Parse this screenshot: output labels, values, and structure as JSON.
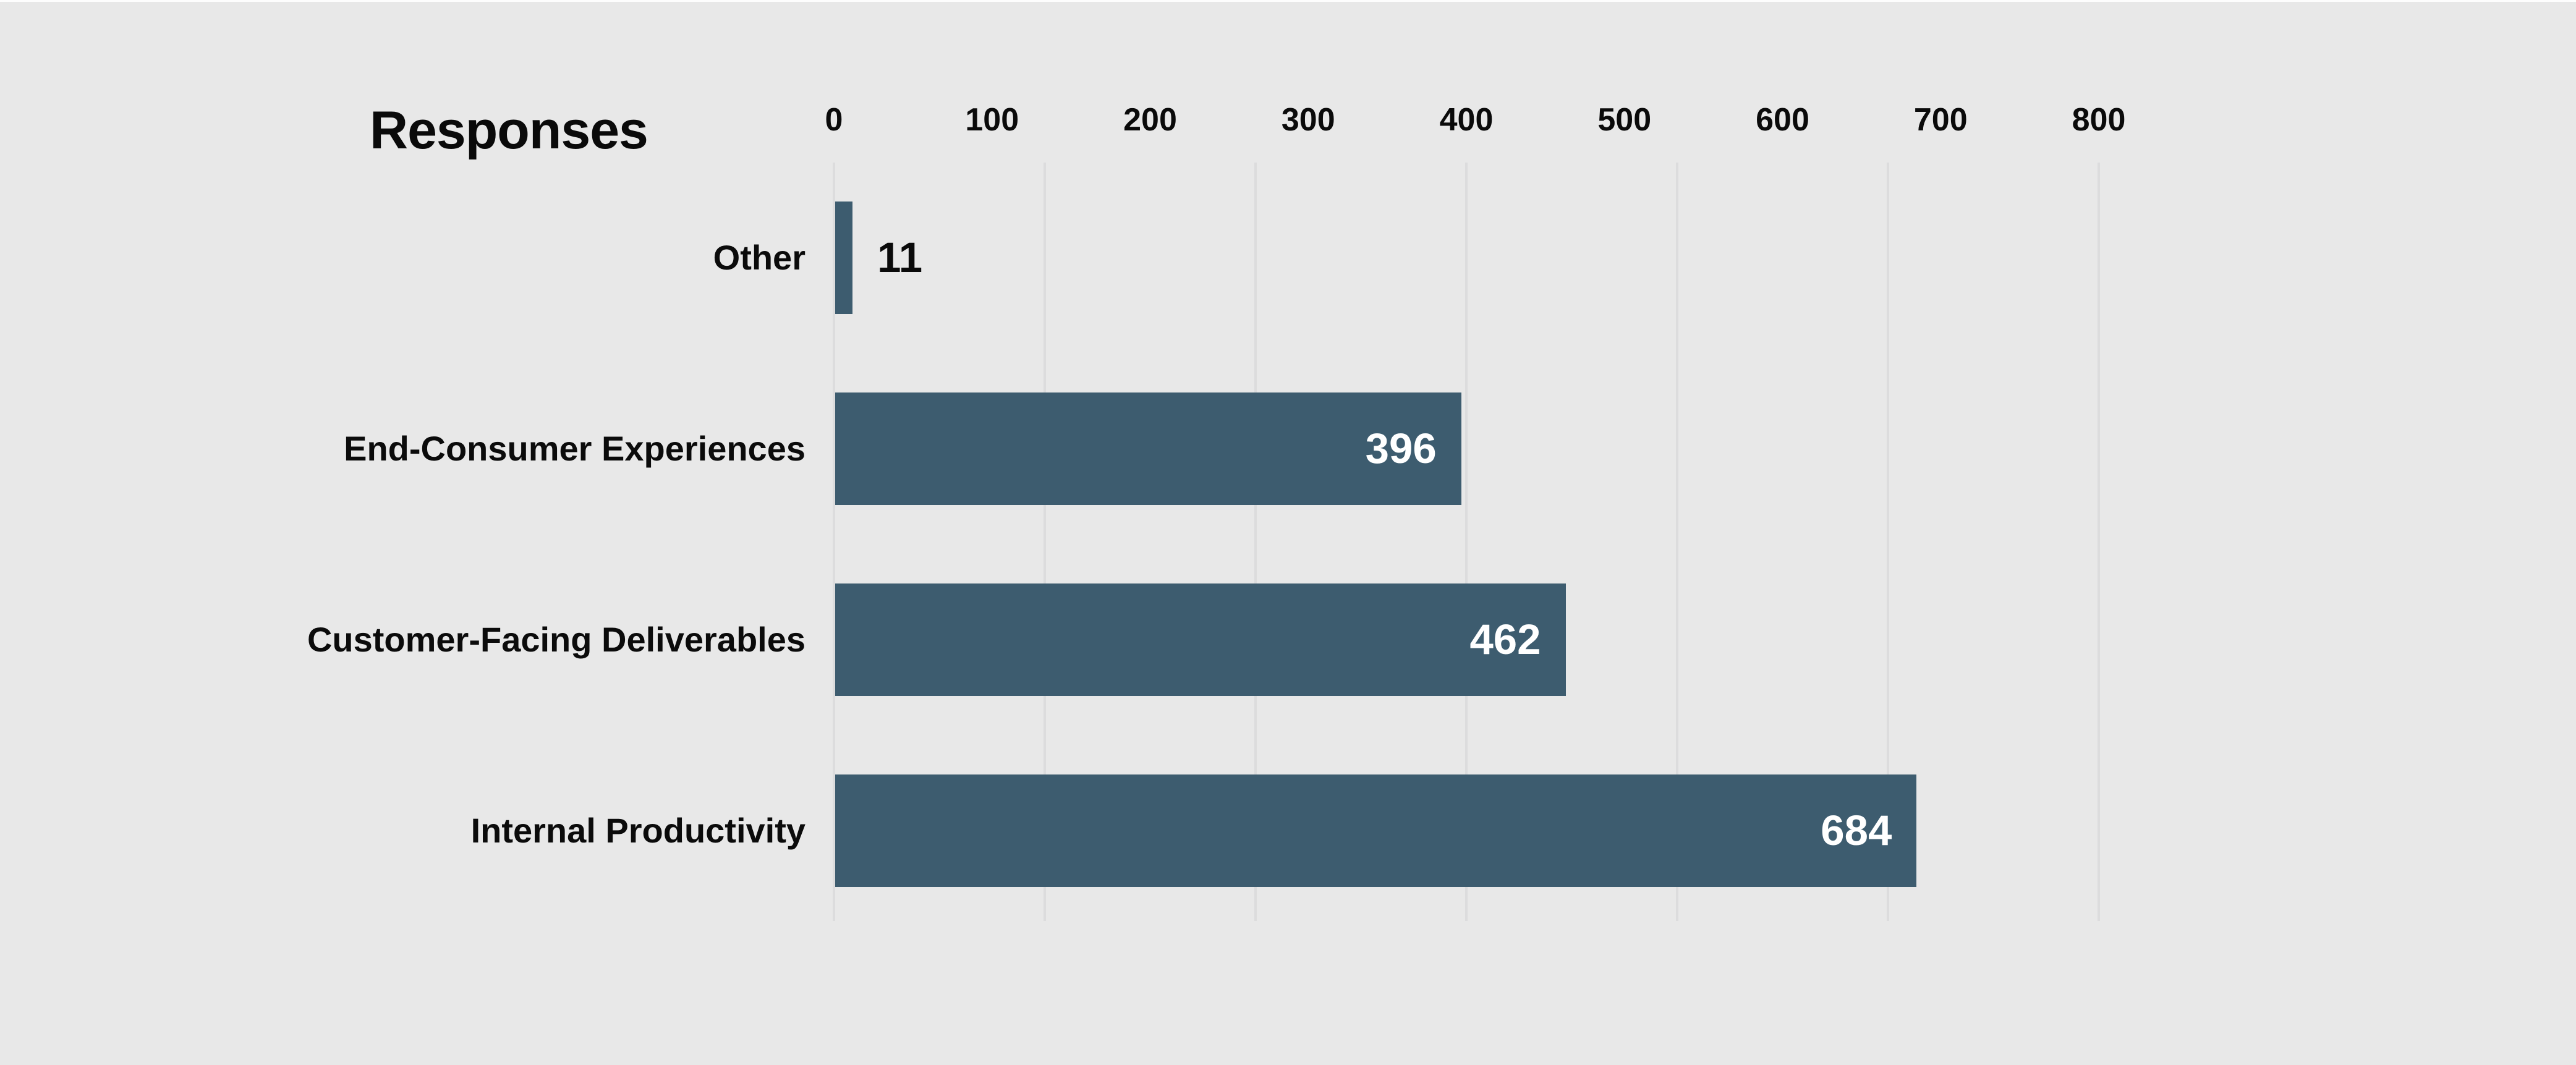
{
  "chart_data": {
    "type": "bar",
    "orientation": "horizontal",
    "title": "Responses",
    "categories": [
      "Other",
      "End-Consumer Experiences",
      "Customer-Facing Deliverables",
      "Internal Productivity"
    ],
    "values": [
      11,
      396,
      462,
      684
    ],
    "value_labels": [
      "11",
      "396",
      "462",
      "684"
    ],
    "xlim": [
      0,
      800
    ],
    "x_ticks": [
      0,
      100,
      200,
      300,
      400,
      500,
      600,
      700,
      800
    ],
    "x_tick_labels": [
      "0",
      "100",
      "200",
      "300",
      "400",
      "500",
      "600",
      "700",
      "800"
    ],
    "gridline_values": [
      0,
      133.33,
      266.67,
      400,
      533.33,
      666.67,
      800
    ],
    "grid": true,
    "legend": false,
    "ylabel": "",
    "xlabel": "",
    "colors": {
      "bar": "#3d5c6f",
      "background": "#e8e8e8",
      "gridline": "#dcdcdd",
      "value_label_inside": "#ffffff",
      "value_label_outside": "#0a0a0a",
      "text": "#0a0a0a"
    }
  }
}
